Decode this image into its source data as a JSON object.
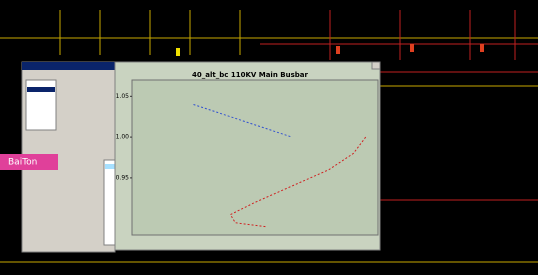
{
  "side_label": "BaiTon",
  "chart_data": {
    "type": "line",
    "title": "40_alt_bc 110KV Main Busbar",
    "xlim": [
      0,
      100
    ],
    "ylim": [
      0.88,
      1.07
    ],
    "yticks": [
      1.05,
      {
        "value": 1,
        "label": "1.00"
      },
      0.95
    ],
    "series": [
      {
        "color": "#3050d0",
        "x": [
          25,
          45,
          65
        ],
        "values": [
          1.04,
          1.02,
          1.0
        ]
      },
      {
        "color": "#d02020",
        "x": [
          95,
          90,
          80,
          65,
          50,
          40,
          42,
          55
        ],
        "values": [
          1.0,
          0.98,
          0.96,
          0.94,
          0.92,
          0.905,
          0.895,
          0.89
        ]
      }
    ]
  }
}
